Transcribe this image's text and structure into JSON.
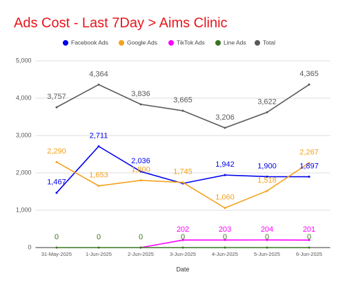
{
  "chart_data": {
    "type": "line",
    "title": "Ads Cost - Last 7Day > Aims Clinic",
    "x_label": "Date",
    "categories": [
      "31-May-2025",
      "1-Jun-2025",
      "2-Jun-2025",
      "3-Jun-2025",
      "4-Jun-2025",
      "5-Jun-2025",
      "6-Jun-2025"
    ],
    "series": [
      {
        "name": "Facebook Ads",
        "color": "#0000ee",
        "values": [
          1467,
          2711,
          2036,
          1718,
          1942,
          1900,
          1897
        ],
        "value_labels": [
          "1,467",
          "2,711",
          "2,036",
          null,
          "1,942",
          "1,900",
          "1,897"
        ]
      },
      {
        "name": "Google Ads",
        "color": "#f4a11c",
        "values": [
          2290,
          1653,
          1800,
          1745,
          1060,
          1518,
          2267
        ],
        "value_labels": [
          "2,290",
          "1,653",
          "1,800",
          "1,745",
          "1,060",
          "1,518",
          "2,267"
        ]
      },
      {
        "name": "TikTok Ads",
        "color": "#ff00ff",
        "values": [
          null,
          null,
          0,
          202,
          203,
          204,
          201
        ],
        "value_labels": [
          null,
          null,
          null,
          "202",
          "203",
          "204",
          "201"
        ]
      },
      {
        "name": "Line Ads",
        "color": "#38761d",
        "values": [
          0,
          0,
          0,
          0,
          0,
          0,
          0
        ],
        "value_labels": [
          "0",
          "0",
          "0",
          "0",
          "0",
          "0",
          "0"
        ]
      },
      {
        "name": "Total",
        "color": "#595959",
        "values": [
          3757,
          4364,
          3836,
          3665,
          3206,
          3622,
          4365
        ],
        "value_labels": [
          "3,757",
          "4,364",
          "3,836",
          "3,665",
          "3,206",
          "3,622",
          "4,365"
        ]
      }
    ],
    "ylim": [
      0,
      5000
    ],
    "yticks": [
      0,
      {
        "value": 1000,
        "label": "1,000"
      },
      {
        "value": 2000,
        "label": "2,000"
      },
      {
        "value": 3000,
        "label": "3,000"
      },
      {
        "value": 4000,
        "label": "4,000"
      },
      {
        "value": 5000,
        "label": "5,000"
      }
    ],
    "grid": true
  }
}
